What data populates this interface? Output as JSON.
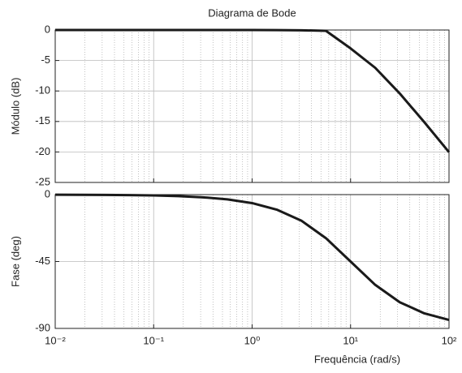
{
  "chart_data": [
    {
      "type": "line",
      "title": "Diagrama de Bode",
      "y_label": "Módulo (dB)",
      "x": [
        0.01,
        0.0178,
        0.0316,
        0.0562,
        0.1,
        0.178,
        0.316,
        0.562,
        1,
        1.78,
        3.16,
        5.62,
        10,
        17.8,
        31.6,
        56.2,
        100
      ],
      "values": [
        0,
        0,
        0,
        0,
        0,
        0,
        0,
        -0.001,
        -0.004,
        -0.014,
        -0.043,
        -0.136,
        -3.01,
        -6.2,
        -10.41,
        -15.13,
        -20.04
      ],
      "color": "#1a1a1a",
      "xscale": "log",
      "xlim": [
        0.01,
        100
      ],
      "xticks": [
        0.01,
        0.1,
        1,
        10,
        100
      ],
      "show_xtick_labels": false,
      "ylim": [
        -25,
        0
      ],
      "yticks": [
        0,
        -5,
        -10,
        -15,
        -20,
        -25
      ],
      "grid": true,
      "minor_grid": true
    },
    {
      "type": "line",
      "y_label": "Fase (deg)",
      "x_label": "Frequência (rad/s)",
      "x": [
        0.01,
        0.0178,
        0.0316,
        0.0562,
        0.1,
        0.178,
        0.316,
        0.562,
        1,
        1.78,
        3.16,
        5.62,
        10,
        17.8,
        31.6,
        56.2,
        100
      ],
      "values": [
        -0.057,
        -0.102,
        -0.181,
        -0.322,
        -0.573,
        -1.02,
        -1.81,
        -3.22,
        -5.71,
        -10.1,
        -17.5,
        -29.3,
        -45,
        -60.7,
        -72.4,
        -79.9,
        -84.3
      ],
      "color": "#1a1a1a",
      "xscale": "log",
      "xlim": [
        0.01,
        100
      ],
      "xticks": [
        {
          "value": 0.01,
          "label": "10⁻²"
        },
        {
          "value": 0.1,
          "label": "10⁻¹"
        },
        {
          "value": 1,
          "label": "10⁰"
        },
        {
          "value": 10,
          "label": "10¹"
        },
        {
          "value": 100,
          "label": "10²"
        }
      ],
      "show_xtick_labels": true,
      "ylim": [
        -90,
        0
      ],
      "yticks": [
        0,
        -45,
        -90
      ],
      "grid": true,
      "minor_grid": true
    }
  ]
}
